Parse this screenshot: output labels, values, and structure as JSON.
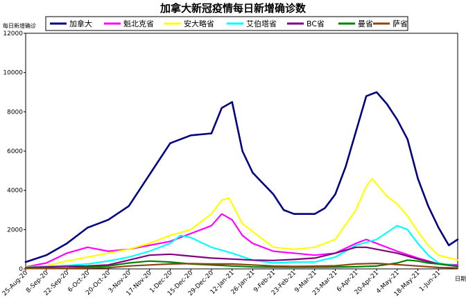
{
  "chart_data": {
    "type": "line",
    "title": "加拿大新冠疫情每日新增确诊数",
    "ylabel": "每日新增确诊",
    "xlabel": "日期",
    "ylim": [
      0,
      12000
    ],
    "yticks": [
      "0",
      "2000",
      "4000",
      "6000",
      "8000",
      "10000",
      "12000"
    ],
    "ytick_values": [
      0,
      2000,
      4000,
      6000,
      8000,
      10000,
      12000
    ],
    "xticks": [
      "25-Aug-20",
      "8-Sep-20",
      "22-Sep-20",
      "6-Oct-20",
      "20-Oct-20",
      "3-Nov-20",
      "17-Nov-20",
      "1-Dec-20",
      "15-Dec-20",
      "29-Dec-20",
      "12-Jan-21",
      "26-Jan-21",
      "9-Feb-21",
      "23-Feb-21",
      "9-Mar-21",
      "23-Mar-21",
      "6-Apr-21",
      "20-Apr-21",
      "4-May-21",
      "18-May-21",
      "1-Jun-21"
    ],
    "x_range": [
      "2020-08-25",
      "2021-06-14"
    ],
    "grid": false,
    "legend_position": "top",
    "series": [
      {
        "name": "加拿大",
        "color": "#000080",
        "width": 2.6,
        "points": [
          [
            "2020-08-25",
            350
          ],
          [
            "2020-09-08",
            700
          ],
          [
            "2020-09-22",
            1300
          ],
          [
            "2020-10-06",
            2100
          ],
          [
            "2020-10-20",
            2500
          ],
          [
            "2020-11-03",
            3200
          ],
          [
            "2020-11-17",
            4800
          ],
          [
            "2020-12-01",
            6400
          ],
          [
            "2020-12-15",
            6800
          ],
          [
            "2020-12-29",
            6900
          ],
          [
            "2021-01-05",
            8200
          ],
          [
            "2021-01-12",
            8500
          ],
          [
            "2021-01-19",
            6000
          ],
          [
            "2021-01-26",
            4900
          ],
          [
            "2021-02-09",
            3800
          ],
          [
            "2021-02-16",
            3000
          ],
          [
            "2021-02-23",
            2800
          ],
          [
            "2021-03-09",
            2800
          ],
          [
            "2021-03-16",
            3100
          ],
          [
            "2021-03-23",
            3800
          ],
          [
            "2021-03-30",
            5200
          ],
          [
            "2021-04-06",
            7000
          ],
          [
            "2021-04-13",
            8800
          ],
          [
            "2021-04-20",
            9000
          ],
          [
            "2021-04-27",
            8400
          ],
          [
            "2021-05-04",
            7600
          ],
          [
            "2021-05-11",
            6600
          ],
          [
            "2021-05-18",
            4600
          ],
          [
            "2021-05-25",
            3200
          ],
          [
            "2021-06-01",
            2100
          ],
          [
            "2021-06-08",
            1200
          ],
          [
            "2021-06-14",
            1500
          ]
        ]
      },
      {
        "name": "魁北克省",
        "color": "#ff00ff",
        "width": 2.2,
        "points": [
          [
            "2020-08-25",
            100
          ],
          [
            "2020-09-08",
            300
          ],
          [
            "2020-09-22",
            800
          ],
          [
            "2020-10-06",
            1100
          ],
          [
            "2020-10-20",
            900
          ],
          [
            "2020-11-03",
            1000
          ],
          [
            "2020-11-17",
            1200
          ],
          [
            "2020-12-01",
            1400
          ],
          [
            "2020-12-15",
            1800
          ],
          [
            "2020-12-29",
            2200
          ],
          [
            "2021-01-05",
            2800
          ],
          [
            "2021-01-12",
            2500
          ],
          [
            "2021-01-19",
            1700
          ],
          [
            "2021-01-26",
            1300
          ],
          [
            "2021-02-09",
            900
          ],
          [
            "2021-02-23",
            800
          ],
          [
            "2021-03-09",
            700
          ],
          [
            "2021-03-23",
            800
          ],
          [
            "2021-04-06",
            1300
          ],
          [
            "2021-04-13",
            1500
          ],
          [
            "2021-04-20",
            1300
          ],
          [
            "2021-05-04",
            900
          ],
          [
            "2021-05-18",
            550
          ],
          [
            "2021-06-01",
            250
          ],
          [
            "2021-06-14",
            200
          ]
        ]
      },
      {
        "name": "安大略省",
        "color": "#ffff00",
        "width": 2.2,
        "points": [
          [
            "2020-08-25",
            100
          ],
          [
            "2020-09-08",
            150
          ],
          [
            "2020-09-22",
            400
          ],
          [
            "2020-10-06",
            600
          ],
          [
            "2020-10-20",
            800
          ],
          [
            "2020-11-03",
            1000
          ],
          [
            "2020-11-17",
            1300
          ],
          [
            "2020-12-01",
            1700
          ],
          [
            "2020-12-15",
            2000
          ],
          [
            "2020-12-29",
            2800
          ],
          [
            "2021-01-05",
            3500
          ],
          [
            "2021-01-10",
            3600
          ],
          [
            "2021-01-19",
            2300
          ],
          [
            "2021-01-26",
            1900
          ],
          [
            "2021-02-09",
            1100
          ],
          [
            "2021-02-23",
            1000
          ],
          [
            "2021-03-09",
            1100
          ],
          [
            "2021-03-23",
            1500
          ],
          [
            "2021-04-06",
            3000
          ],
          [
            "2021-04-13",
            4200
          ],
          [
            "2021-04-17",
            4600
          ],
          [
            "2021-04-27",
            3700
          ],
          [
            "2021-05-04",
            3300
          ],
          [
            "2021-05-11",
            2700
          ],
          [
            "2021-05-18",
            1900
          ],
          [
            "2021-05-25",
            1200
          ],
          [
            "2021-06-01",
            700
          ],
          [
            "2021-06-14",
            450
          ]
        ]
      },
      {
        "name": "艾伯塔省",
        "color": "#00ffff",
        "width": 2.2,
        "points": [
          [
            "2020-08-25",
            80
          ],
          [
            "2020-09-08",
            120
          ],
          [
            "2020-09-22",
            170
          ],
          [
            "2020-10-06",
            250
          ],
          [
            "2020-10-20",
            400
          ],
          [
            "2020-11-03",
            600
          ],
          [
            "2020-11-17",
            900
          ],
          [
            "2020-12-01",
            1300
          ],
          [
            "2020-12-08",
            1700
          ],
          [
            "2020-12-15",
            1600
          ],
          [
            "2020-12-29",
            1100
          ],
          [
            "2021-01-12",
            800
          ],
          [
            "2021-01-26",
            450
          ],
          [
            "2021-02-09",
            300
          ],
          [
            "2021-02-23",
            350
          ],
          [
            "2021-03-09",
            350
          ],
          [
            "2021-03-23",
            600
          ],
          [
            "2021-04-06",
            1200
          ],
          [
            "2021-04-20",
            1500
          ],
          [
            "2021-05-04",
            2200
          ],
          [
            "2021-05-11",
            2000
          ],
          [
            "2021-05-18",
            1300
          ],
          [
            "2021-05-25",
            700
          ],
          [
            "2021-06-01",
            300
          ],
          [
            "2021-06-14",
            150
          ]
        ]
      },
      {
        "name": "BC省",
        "color": "#800080",
        "width": 2.2,
        "points": [
          [
            "2020-08-25",
            70
          ],
          [
            "2020-09-08",
            100
          ],
          [
            "2020-09-22",
            130
          ],
          [
            "2020-10-06",
            150
          ],
          [
            "2020-10-20",
            200
          ],
          [
            "2020-11-03",
            450
          ],
          [
            "2020-11-17",
            700
          ],
          [
            "2020-12-01",
            750
          ],
          [
            "2020-12-15",
            650
          ],
          [
            "2020-12-29",
            550
          ],
          [
            "2021-01-12",
            500
          ],
          [
            "2021-01-26",
            450
          ],
          [
            "2021-02-09",
            430
          ],
          [
            "2021-02-23",
            480
          ],
          [
            "2021-03-09",
            550
          ],
          [
            "2021-03-23",
            800
          ],
          [
            "2021-04-06",
            1100
          ],
          [
            "2021-04-13",
            1100
          ],
          [
            "2021-04-20",
            1000
          ],
          [
            "2021-05-04",
            800
          ],
          [
            "2021-05-18",
            500
          ],
          [
            "2021-06-01",
            250
          ],
          [
            "2021-06-14",
            130
          ]
        ]
      },
      {
        "name": "曼省",
        "color": "#008000",
        "width": 2.2,
        "points": [
          [
            "2020-08-25",
            30
          ],
          [
            "2020-09-22",
            40
          ],
          [
            "2020-10-20",
            150
          ],
          [
            "2020-11-03",
            300
          ],
          [
            "2020-11-17",
            400
          ],
          [
            "2020-12-01",
            350
          ],
          [
            "2020-12-15",
            250
          ],
          [
            "2020-12-29",
            200
          ],
          [
            "2021-01-12",
            150
          ],
          [
            "2021-01-26",
            100
          ],
          [
            "2021-02-23",
            80
          ],
          [
            "2021-03-23",
            90
          ],
          [
            "2021-04-06",
            110
          ],
          [
            "2021-04-20",
            150
          ],
          [
            "2021-05-04",
            300
          ],
          [
            "2021-05-11",
            450
          ],
          [
            "2021-05-18",
            400
          ],
          [
            "2021-05-25",
            300
          ],
          [
            "2021-06-01",
            250
          ],
          [
            "2021-06-14",
            150
          ]
        ]
      },
      {
        "name": "萨省",
        "color": "#8b4513",
        "width": 2.2,
        "points": [
          [
            "2020-08-25",
            20
          ],
          [
            "2020-09-22",
            30
          ],
          [
            "2020-10-20",
            60
          ],
          [
            "2020-11-03",
            150
          ],
          [
            "2020-11-17",
            200
          ],
          [
            "2020-12-01",
            250
          ],
          [
            "2020-12-15",
            270
          ],
          [
            "2020-12-29",
            250
          ],
          [
            "2021-01-12",
            250
          ],
          [
            "2021-01-26",
            200
          ],
          [
            "2021-02-09",
            150
          ],
          [
            "2021-02-23",
            130
          ],
          [
            "2021-03-09",
            140
          ],
          [
            "2021-03-23",
            160
          ],
          [
            "2021-04-06",
            250
          ],
          [
            "2021-04-20",
            280
          ],
          [
            "2021-05-04",
            220
          ],
          [
            "2021-05-18",
            150
          ],
          [
            "2021-06-01",
            70
          ],
          [
            "2021-06-14",
            50
          ]
        ]
      }
    ]
  }
}
